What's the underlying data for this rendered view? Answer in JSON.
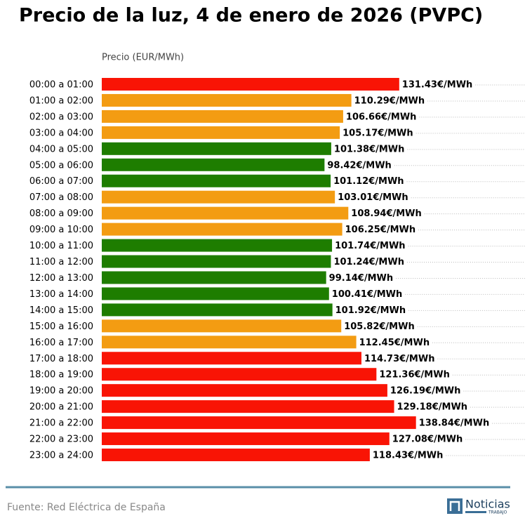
{
  "chart_data": {
    "type": "barh",
    "title": "Precio de la luz, 4 de enero de 2026 (PVPC)",
    "x_label": "Precio (EUR/MWh)",
    "categories": [
      "00:00 a 01:00",
      "01:00 a 02:00",
      "02:00 a 03:00",
      "03:00 a 04:00",
      "04:00 a 05:00",
      "05:00 a 06:00",
      "06:00 a 07:00",
      "07:00 a 08:00",
      "08:00 a 09:00",
      "09:00 a 10:00",
      "10:00 a 11:00",
      "11:00 a 12:00",
      "12:00 a 13:00",
      "13:00 a 14:00",
      "14:00 a 15:00",
      "15:00 a 16:00",
      "16:00 a 17:00",
      "17:00 a 18:00",
      "18:00 a 19:00",
      "19:00 a 20:00",
      "20:00 a 21:00",
      "21:00 a 22:00",
      "22:00 a 23:00",
      "23:00 a 24:00"
    ],
    "values": [
      131.43,
      110.29,
      106.66,
      105.17,
      101.38,
      98.42,
      101.12,
      103.01,
      108.94,
      106.25,
      101.74,
      101.24,
      99.14,
      100.41,
      101.92,
      105.82,
      112.45,
      114.73,
      121.36,
      126.19,
      129.18,
      138.84,
      127.08,
      118.43
    ],
    "value_labels": [
      "131.43€/MWh",
      "110.29€/MWh",
      "106.66€/MWh",
      "105.17€/MWh",
      "101.38€/MWh",
      "98.42€/MWh",
      "101.12€/MWh",
      "103.01€/MWh",
      "108.94€/MWh",
      "106.25€/MWh",
      "101.74€/MWh",
      "101.24€/MWh",
      "99.14€/MWh",
      "100.41€/MWh",
      "101.92€/MWh",
      "105.82€/MWh",
      "112.45€/MWh",
      "114.73€/MWh",
      "121.36€/MWh",
      "126.19€/MWh",
      "129.18€/MWh",
      "138.84€/MWh",
      "127.08€/MWh",
      "118.43€/MWh"
    ],
    "colors": [
      "#f91405",
      "#f39c12",
      "#f39c12",
      "#f39c12",
      "#1e7d00",
      "#1e7d00",
      "#1e7d00",
      "#f39c12",
      "#f39c12",
      "#f39c12",
      "#1e7d00",
      "#1e7d00",
      "#1e7d00",
      "#1e7d00",
      "#1e7d00",
      "#f39c12",
      "#f39c12",
      "#f91405",
      "#f91405",
      "#f91405",
      "#f91405",
      "#f91405",
      "#f91405",
      "#f91405"
    ],
    "xlim": [
      0,
      187
    ]
  },
  "footer": {
    "source": "Fuente: Red Eléctrica de España",
    "logo": "Noticias",
    "logo_sub": "TRABAJO"
  }
}
